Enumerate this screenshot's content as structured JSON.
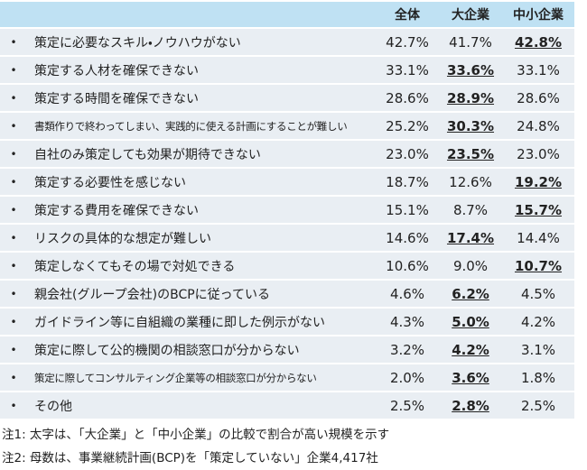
{
  "table": {
    "header": [
      "全体",
      "大企業",
      "中小企業"
    ],
    "rows": [
      {
        "item": "策定に必要なスキル・ノウハウがない",
        "values": [
          "42.7%",
          "41.7%",
          "42.8%"
        ],
        "emphasis": 2
      },
      {
        "item": "策定する人材を確保できない",
        "values": [
          "33.1%",
          "33.6%",
          "33.1%"
        ],
        "emphasis": 1
      },
      {
        "item": "策定する時間を確保できない",
        "values": [
          "28.6%",
          "28.9%",
          "28.6%"
        ],
        "emphasis": 1
      },
      {
        "item": "書類作りで終わってしまい、実践的に使える計画にすることが難しい",
        "values": [
          "25.2%",
          "30.3%",
          "24.8%"
        ],
        "emphasis": 1
      },
      {
        "item": "自社のみ策定しても効果が期待できない",
        "values": [
          "23.0%",
          "23.5%",
          "23.0%"
        ],
        "emphasis": 1
      },
      {
        "item": "策定する必要性を感じない",
        "values": [
          "18.7%",
          "12.6%",
          "19.2%"
        ],
        "emphasis": 2
      },
      {
        "item": "策定する費用を確保できない",
        "values": [
          "15.1%",
          "8.7%",
          "15.7%"
        ],
        "emphasis": 2
      },
      {
        "item": "リスクの具体的な想定が難しい",
        "values": [
          "14.6%",
          "17.4%",
          "14.4%"
        ],
        "emphasis": 1
      },
      {
        "item": "策定しなくてもその場で対処できる",
        "values": [
          "10.6%",
          "9.0%",
          "10.7%"
        ],
        "emphasis": 2
      },
      {
        "item": "親会社(グループ会社)のBCPに従っている",
        "values": [
          "4.6%",
          "6.2%",
          "4.5%"
        ],
        "emphasis": 1
      },
      {
        "item": "ガイドライン等に自組織の業種に即した例示がない",
        "values": [
          "4.3%",
          "5.0%",
          "4.2%"
        ],
        "emphasis": 1
      },
      {
        "item": "策定に際して公的機関の相談窓口が分からない",
        "values": [
          "3.2%",
          "4.2%",
          "3.1%"
        ],
        "emphasis": 1
      },
      {
        "item": "策定に際してコンサルティング企業等の相談窓口が分からない",
        "values": [
          "2.0%",
          "3.6%",
          "1.8%"
        ],
        "emphasis": 1
      },
      {
        "item": "その他",
        "values": [
          "2.5%",
          "2.8%",
          "2.5%"
        ],
        "emphasis": 1
      }
    ]
  },
  "notes": [
    "注1: 太字は、「大企業」と「中小企業」の比較で割合が高い規模を示す",
    "注2: 母数は、事業継続計画(BCP)を「策定していない」企業4,417社"
  ]
}
